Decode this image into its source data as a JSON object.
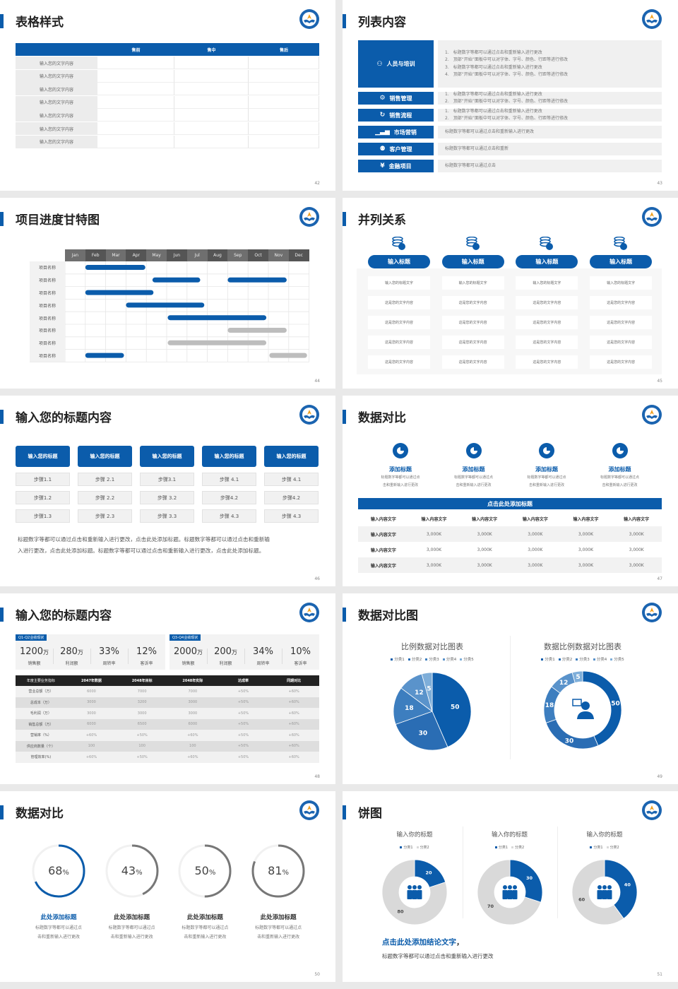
{
  "colors": {
    "primary": "#0b5cab",
    "gray": "#c8c8c8",
    "dark": "#222222"
  },
  "slides": {
    "s42": {
      "title": "表格样式",
      "page": "42",
      "headers": [
        "",
        "售前",
        "售中",
        "售后"
      ],
      "rows": [
        "输入您的文字内容",
        "输入您的文字内容",
        "输入您的文字内容",
        "输入您的文字内容",
        "输入您的文字内容",
        "输入您的文字内容",
        "输入您的文字内容"
      ]
    },
    "s43": {
      "title": "列表内容",
      "page": "43",
      "items": [
        {
          "icon": "training-icon",
          "label": "人员与培训",
          "lines": [
            "1.　标题数字等都可以通过点击和重新输入进行更改",
            "2.　顶部“开始”面板中可以对字体、字号、颜色、行距等进行修改",
            "3.　标题数字等都可以通过点击和重新输入进行更改",
            "4.　顶部“开始”面板中可以对字体、字号、颜色、行距等进行修改"
          ]
        },
        {
          "icon": "user-gear-icon",
          "label": "销售管理",
          "lines": [
            "1.　标题数字等都可以通过点击和重新输入进行更改",
            "2.　顶部“开始”面板中可以对字体、字号、颜色、行距等进行修改"
          ]
        },
        {
          "icon": "cycle-icon",
          "label": "销售流程",
          "lines": [
            "1.　标题数字等都可以通过点击和重新输入进行更改",
            "2.　顶部“开始”面板中可以对字体、字号、颜色、行距等进行修改"
          ]
        },
        {
          "icon": "bar-chart-icon",
          "label": "市场营销",
          "lines": [
            "标题数字等都可以通过点击和重新输入进行更改"
          ]
        },
        {
          "icon": "users-icon",
          "label": "客户管理",
          "lines": [
            "标题数字等都可以通过点击和重新"
          ]
        },
        {
          "icon": "finance-icon",
          "label": "金融项目",
          "lines": [
            "标题数字等都可以通过点击"
          ]
        }
      ]
    },
    "s44": {
      "title": "项目进度甘特图",
      "page": "44",
      "chart_data": {
        "type": "gantt",
        "months": [
          "Jan",
          "Feb",
          "Mar",
          "Apr",
          "May",
          "Jun",
          "Jul",
          "Aug",
          "Sep",
          "Oct",
          "Nov",
          "Dec"
        ],
        "tasks": [
          {
            "label": "项目名称",
            "bars": [
              {
                "start": 1.0,
                "end": 3.95,
                "status": "active"
              }
            ]
          },
          {
            "label": "项目名称",
            "bars": [
              {
                "start": 4.3,
                "end": 6.65,
                "status": "active"
              },
              {
                "start": 8.0,
                "end": 10.9,
                "status": "active"
              }
            ]
          },
          {
            "label": "项目名称",
            "bars": [
              {
                "start": 1.0,
                "end": 4.35,
                "status": "active"
              }
            ]
          },
          {
            "label": "项目名称",
            "bars": [
              {
                "start": 3.0,
                "end": 6.85,
                "status": "active"
              }
            ]
          },
          {
            "label": "项目名称",
            "bars": [
              {
                "start": 5.05,
                "end": 9.9,
                "status": "active"
              }
            ]
          },
          {
            "label": "项目名称",
            "bars": [
              {
                "start": 8.0,
                "end": 10.9,
                "status": "planned"
              }
            ]
          },
          {
            "label": "项目名称",
            "bars": [
              {
                "start": 5.05,
                "end": 9.9,
                "status": "planned"
              }
            ]
          },
          {
            "label": "项目名称",
            "bars": [
              {
                "start": 1.0,
                "end": 2.9,
                "status": "active"
              },
              {
                "start": 10.05,
                "end": 11.9,
                "status": "planned"
              }
            ]
          }
        ]
      }
    },
    "s45": {
      "title": "并列关系",
      "page": "45",
      "columns": [
        {
          "head": "输入标题",
          "cells": [
            "输入您的标题文字",
            "这是您的文字内容",
            "这是您的文字内容",
            "这是您的文字内容",
            "这是您的文字内容"
          ]
        },
        {
          "head": "输入标题",
          "cells": [
            "输入您的标题文字",
            "这是您的文字内容",
            "这是您的文字内容",
            "这是您的文字内容",
            "这是您的文字内容"
          ]
        },
        {
          "head": "输入标题",
          "cells": [
            "输入您的标题文字",
            "这是您的文字内容",
            "这是您的文字内容",
            "这是您的文字内容",
            "这是您的文字内容"
          ]
        },
        {
          "head": "输入标题",
          "cells": [
            "输入您的标题文字",
            "这是您的文字内容",
            "这是您的文字内容",
            "这是您的文字内容",
            "这是您的文字内容"
          ]
        }
      ]
    },
    "s46": {
      "title": "输入您的标题内容",
      "page": "46",
      "columns": [
        {
          "head": "输入您的标题",
          "steps": [
            "步骤1.1",
            "步骤1.2",
            "步骤1.3"
          ]
        },
        {
          "head": "输入您的标题",
          "steps": [
            "步骤 2.1",
            "步骤 2.2",
            "步骤 2.3"
          ]
        },
        {
          "head": "输入您的标题",
          "steps": [
            "步骤3.1",
            "步骤 3.2",
            "步骤 3.3"
          ]
        },
        {
          "head": "输入您的标题",
          "steps": [
            "步骤 4.1",
            "步骤4.2",
            "步骤 4.3"
          ]
        },
        {
          "head": "输入您的标题",
          "steps": [
            "步骤 4.1",
            "步骤4.2",
            "步骤 4.3"
          ]
        }
      ],
      "paragraph": [
        "标题数字等都可以通过点击和重新输入进行更改，点击此处添加标题。标题数字等都可以通过点击和重新输",
        "入进行更改，点击此处添加标题。标题数字等都可以通过点击和重新输入进行更改，点击此处添加标题。"
      ]
    },
    "s47": {
      "title": "数据对比",
      "page": "47",
      "features": [
        {
          "title": "添加标题",
          "desc": [
            "标题数字等都可以通过点",
            "击和重新输入进行更改"
          ]
        },
        {
          "title": "添加标题",
          "desc": [
            "标题数字等都可以通过点",
            "击和重新输入进行更改"
          ]
        },
        {
          "title": "添加标题",
          "desc": [
            "标题数字等都可以通过点",
            "击和重新输入进行更改"
          ]
        },
        {
          "title": "添加标题",
          "desc": [
            "标题数字等都可以通过点",
            "击和重新输入进行更改"
          ]
        }
      ],
      "banner": "点击此处添加标题",
      "table": {
        "header": [
          "输入内容文字",
          "输入内容文字",
          "输入内容文字",
          "输入内容文字",
          "输入内容文字",
          "输入内容文字"
        ],
        "rows": [
          [
            "输入内容文字",
            "3,000K",
            "3,000K",
            "3,000K",
            "3,000K",
            "3,000K"
          ],
          [
            "输入内容文字",
            "3,000K",
            "3,000K",
            "3,000K",
            "3,000K",
            "3,000K"
          ],
          [
            "输入内容文字",
            "3,000K",
            "3,000K",
            "3,000K",
            "3,000K",
            "3,000K"
          ]
        ]
      }
    },
    "s48": {
      "title": "输入您的标题内容",
      "page": "48",
      "panels": [
        {
          "tag": "Q1-Q2业绩现状",
          "kpis": [
            {
              "v": "1200",
              "u": "万",
              "l": "销售额"
            },
            {
              "v": "280",
              "u": "万",
              "l": "利润额"
            },
            {
              "v": "33%",
              "u": "",
              "l": "周转率"
            },
            {
              "v": "12%",
              "u": "",
              "l": "客诉率"
            }
          ]
        },
        {
          "tag": "Q3-Q4业绩现状",
          "kpis": [
            {
              "v": "2000",
              "u": "万",
              "l": "销售额"
            },
            {
              "v": "200",
              "u": "万",
              "l": "利润额"
            },
            {
              "v": "34%",
              "u": "",
              "l": "周转率"
            },
            {
              "v": "10%",
              "u": "",
              "l": "客诉率"
            }
          ]
        }
      ],
      "table": {
        "header": [
          "年度主要业务指标",
          "2047年数据",
          "2048年目标",
          "2048年实际",
          "达成率",
          "同期对比"
        ],
        "rows": [
          [
            "营业总额（万）",
            "6000",
            "7000",
            "7000",
            "+50%",
            "+60%"
          ],
          [
            "总成本（万）",
            "3000",
            "3200",
            "3000",
            "+50%",
            "+60%"
          ],
          [
            "毛利润（万）",
            "3000",
            "3000",
            "3000",
            "+50%",
            "+60%"
          ],
          [
            "销售总额（万）",
            "6000",
            "6500",
            "6000",
            "+50%",
            "+60%"
          ],
          [
            "营销率（%）",
            "+60%",
            "+50%",
            "+60%",
            "+50%",
            "+60%"
          ],
          [
            "供应商数量（个）",
            "100",
            "100",
            "100",
            "+50%",
            "+60%"
          ],
          [
            "管理效率(%)",
            "+60%",
            "+50%",
            "+60%",
            "+50%",
            "+60%"
          ]
        ]
      }
    },
    "s49": {
      "title": "数据对比图",
      "page": "49",
      "chart_data": [
        {
          "type": "pie",
          "title": "比例数据对比图表",
          "categories": [
            "分类1",
            "分类2",
            "分类3",
            "分类4",
            "分类5"
          ],
          "values": [
            50,
            30,
            18,
            12,
            5
          ],
          "colors": [
            "#0b5cab",
            "#2a6db4",
            "#3d7ebf",
            "#5a93cb",
            "#7eaed9"
          ],
          "legend": "top"
        },
        {
          "type": "donut",
          "title": "数据比例数据对比图表",
          "categories": [
            "分类1",
            "分类2",
            "分类3",
            "分类4",
            "分类5"
          ],
          "values": [
            50,
            30,
            18,
            12,
            5
          ],
          "colors": [
            "#0b5cab",
            "#2a6db4",
            "#3d7ebf",
            "#5a93cb",
            "#7eaed9"
          ],
          "legend": "top",
          "center_icon": "consultant-icon"
        }
      ]
    },
    "s50": {
      "title": "数据对比",
      "page": "50",
      "rings": [
        {
          "value": 68,
          "unit": "%",
          "title": "此处添加标题",
          "desc": [
            "标题数字等都可以通过点",
            "击和重新输入进行更改"
          ],
          "color": "#0b5cab"
        },
        {
          "value": 43,
          "unit": "%",
          "title": "此处添加标题",
          "desc": [
            "标题数字等都可以通过点",
            "击和重新输入进行更改"
          ],
          "color": "#777777"
        },
        {
          "value": 50,
          "unit": "%",
          "title": "此处添加标题",
          "desc": [
            "标题数字等都可以通过点",
            "击和重新输入进行更改"
          ],
          "color": "#777777"
        },
        {
          "value": 81,
          "unit": "%",
          "title": "此处添加标题",
          "desc": [
            "标题数字等都可以通过点",
            "击和重新输入进行更改"
          ],
          "color": "#777777"
        }
      ]
    },
    "s51": {
      "title": "饼图",
      "page": "51",
      "chart_data": [
        {
          "type": "donut",
          "title": "输入你的标题",
          "categories": [
            "分类1",
            "分类2"
          ],
          "values": [
            20,
            80
          ],
          "colors": [
            "#0b5cab",
            "#d9d9d9"
          ],
          "legend": "top"
        },
        {
          "type": "donut",
          "title": "输入你的标题",
          "categories": [
            "分类1",
            "分类2"
          ],
          "values": [
            30,
            70
          ],
          "colors": [
            "#0b5cab",
            "#d9d9d9"
          ],
          "legend": "top"
        },
        {
          "type": "donut",
          "title": "输入你的标题",
          "categories": [
            "分类1",
            "分类2"
          ],
          "values": [
            40,
            60
          ],
          "colors": [
            "#0b5cab",
            "#d9d9d9"
          ],
          "legend": "top"
        }
      ],
      "conclusion": "点击此处添加结论文字",
      "conclusion_comma": "，",
      "subtext": "标题数字等都可以通过点击和重新输入进行更改"
    }
  }
}
